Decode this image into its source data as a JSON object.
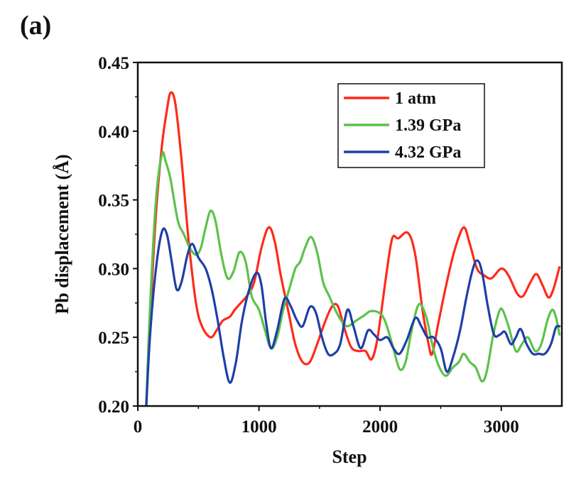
{
  "panel_label": "(a)",
  "chart_data": {
    "type": "line",
    "title": "",
    "xlabel": "Step",
    "ylabel": "Pb displacement (Å)",
    "xlim": [
      0,
      3500
    ],
    "ylim": [
      0.2,
      0.45
    ],
    "x_ticks": [
      0,
      1000,
      2000,
      3000
    ],
    "x_tick_labels": [
      "0",
      "1000",
      "2000",
      "3000"
    ],
    "y_ticks": [
      0.2,
      0.25,
      0.3,
      0.35,
      0.4,
      0.45
    ],
    "y_tick_labels": [
      "0.20",
      "0.25",
      "0.30",
      "0.35",
      "0.40",
      "0.45"
    ],
    "grid": false,
    "legend_position": "top-right",
    "series": [
      {
        "name": "1 atm",
        "color": "#ff2a1a",
        "points": [
          [
            70,
            0.2
          ],
          [
            100,
            0.26
          ],
          [
            150,
            0.34
          ],
          [
            200,
            0.39
          ],
          [
            240,
            0.415
          ],
          [
            270,
            0.428
          ],
          [
            310,
            0.42
          ],
          [
            360,
            0.38
          ],
          [
            420,
            0.32
          ],
          [
            480,
            0.275
          ],
          [
            530,
            0.258
          ],
          [
            600,
            0.25
          ],
          [
            650,
            0.255
          ],
          [
            700,
            0.262
          ],
          [
            760,
            0.265
          ],
          [
            800,
            0.27
          ],
          [
            850,
            0.275
          ],
          [
            900,
            0.28
          ],
          [
            960,
            0.29
          ],
          [
            1020,
            0.315
          ],
          [
            1080,
            0.33
          ],
          [
            1130,
            0.32
          ],
          [
            1180,
            0.295
          ],
          [
            1240,
            0.27
          ],
          [
            1300,
            0.245
          ],
          [
            1360,
            0.232
          ],
          [
            1420,
            0.232
          ],
          [
            1480,
            0.245
          ],
          [
            1540,
            0.26
          ],
          [
            1600,
            0.272
          ],
          [
            1650,
            0.273
          ],
          [
            1700,
            0.258
          ],
          [
            1760,
            0.243
          ],
          [
            1820,
            0.24
          ],
          [
            1880,
            0.24
          ],
          [
            1930,
            0.234
          ],
          [
            1980,
            0.25
          ],
          [
            2050,
            0.295
          ],
          [
            2100,
            0.322
          ],
          [
            2150,
            0.322
          ],
          [
            2230,
            0.326
          ],
          [
            2290,
            0.31
          ],
          [
            2350,
            0.27
          ],
          [
            2400,
            0.245
          ],
          [
            2430,
            0.238
          ],
          [
            2480,
            0.26
          ],
          [
            2550,
            0.29
          ],
          [
            2620,
            0.315
          ],
          [
            2690,
            0.33
          ],
          [
            2740,
            0.318
          ],
          [
            2800,
            0.3
          ],
          [
            2860,
            0.295
          ],
          [
            2920,
            0.293
          ],
          [
            3000,
            0.3
          ],
          [
            3060,
            0.295
          ],
          [
            3130,
            0.282
          ],
          [
            3180,
            0.28
          ],
          [
            3240,
            0.29
          ],
          [
            3290,
            0.296
          ],
          [
            3340,
            0.288
          ],
          [
            3390,
            0.279
          ],
          [
            3430,
            0.285
          ],
          [
            3480,
            0.301
          ]
        ]
      },
      {
        "name": "1.39 GPa",
        "color": "#5cc24a",
        "points": [
          [
            70,
            0.2
          ],
          [
            100,
            0.27
          ],
          [
            150,
            0.35
          ],
          [
            200,
            0.383
          ],
          [
            230,
            0.378
          ],
          [
            270,
            0.365
          ],
          [
            330,
            0.335
          ],
          [
            380,
            0.325
          ],
          [
            430,
            0.315
          ],
          [
            480,
            0.31
          ],
          [
            520,
            0.315
          ],
          [
            560,
            0.33
          ],
          [
            600,
            0.342
          ],
          [
            640,
            0.335
          ],
          [
            690,
            0.31
          ],
          [
            740,
            0.293
          ],
          [
            790,
            0.298
          ],
          [
            840,
            0.312
          ],
          [
            890,
            0.305
          ],
          [
            940,
            0.28
          ],
          [
            1000,
            0.27
          ],
          [
            1050,
            0.255
          ],
          [
            1100,
            0.242
          ],
          [
            1150,
            0.25
          ],
          [
            1200,
            0.27
          ],
          [
            1250,
            0.285
          ],
          [
            1300,
            0.3
          ],
          [
            1340,
            0.305
          ],
          [
            1380,
            0.315
          ],
          [
            1430,
            0.323
          ],
          [
            1480,
            0.312
          ],
          [
            1530,
            0.29
          ],
          [
            1580,
            0.28
          ],
          [
            1630,
            0.27
          ],
          [
            1680,
            0.262
          ],
          [
            1730,
            0.258
          ],
          [
            1800,
            0.262
          ],
          [
            1870,
            0.266
          ],
          [
            1920,
            0.269
          ],
          [
            1990,
            0.268
          ],
          [
            2040,
            0.262
          ],
          [
            2100,
            0.245
          ],
          [
            2160,
            0.227
          ],
          [
            2210,
            0.232
          ],
          [
            2260,
            0.255
          ],
          [
            2320,
            0.274
          ],
          [
            2380,
            0.265
          ],
          [
            2430,
            0.245
          ],
          [
            2480,
            0.23
          ],
          [
            2540,
            0.222
          ],
          [
            2600,
            0.228
          ],
          [
            2650,
            0.232
          ],
          [
            2690,
            0.238
          ],
          [
            2740,
            0.232
          ],
          [
            2790,
            0.228
          ],
          [
            2840,
            0.218
          ],
          [
            2880,
            0.225
          ],
          [
            2930,
            0.25
          ],
          [
            2980,
            0.268
          ],
          [
            3010,
            0.27
          ],
          [
            3060,
            0.258
          ],
          [
            3120,
            0.24
          ],
          [
            3170,
            0.245
          ],
          [
            3220,
            0.25
          ],
          [
            3280,
            0.24
          ],
          [
            3330,
            0.245
          ],
          [
            3380,
            0.262
          ],
          [
            3420,
            0.27
          ],
          [
            3450,
            0.265
          ],
          [
            3480,
            0.252
          ]
        ]
      },
      {
        "name": "4.32 GPa",
        "color": "#1f3fa8",
        "points": [
          [
            70,
            0.2
          ],
          [
            100,
            0.25
          ],
          [
            150,
            0.3
          ],
          [
            200,
            0.327
          ],
          [
            240,
            0.325
          ],
          [
            280,
            0.305
          ],
          [
            320,
            0.285
          ],
          [
            360,
            0.29
          ],
          [
            410,
            0.31
          ],
          [
            450,
            0.318
          ],
          [
            500,
            0.308
          ],
          [
            560,
            0.3
          ],
          [
            610,
            0.285
          ],
          [
            660,
            0.262
          ],
          [
            710,
            0.235
          ],
          [
            760,
            0.217
          ],
          [
            810,
            0.232
          ],
          [
            860,
            0.262
          ],
          [
            920,
            0.285
          ],
          [
            980,
            0.297
          ],
          [
            1020,
            0.288
          ],
          [
            1060,
            0.26
          ],
          [
            1100,
            0.242
          ],
          [
            1150,
            0.255
          ],
          [
            1210,
            0.278
          ],
          [
            1260,
            0.273
          ],
          [
            1310,
            0.263
          ],
          [
            1360,
            0.258
          ],
          [
            1420,
            0.272
          ],
          [
            1470,
            0.268
          ],
          [
            1520,
            0.25
          ],
          [
            1570,
            0.238
          ],
          [
            1620,
            0.238
          ],
          [
            1670,
            0.245
          ],
          [
            1730,
            0.27
          ],
          [
            1780,
            0.258
          ],
          [
            1840,
            0.242
          ],
          [
            1900,
            0.255
          ],
          [
            1950,
            0.252
          ],
          [
            2000,
            0.248
          ],
          [
            2060,
            0.25
          ],
          [
            2110,
            0.242
          ],
          [
            2160,
            0.238
          ],
          [
            2220,
            0.248
          ],
          [
            2290,
            0.264
          ],
          [
            2340,
            0.258
          ],
          [
            2390,
            0.25
          ],
          [
            2440,
            0.25
          ],
          [
            2500,
            0.242
          ],
          [
            2550,
            0.225
          ],
          [
            2600,
            0.235
          ],
          [
            2660,
            0.255
          ],
          [
            2710,
            0.278
          ],
          [
            2760,
            0.298
          ],
          [
            2800,
            0.306
          ],
          [
            2840,
            0.298
          ],
          [
            2890,
            0.272
          ],
          [
            2940,
            0.252
          ],
          [
            2990,
            0.252
          ],
          [
            3030,
            0.254
          ],
          [
            3080,
            0.245
          ],
          [
            3120,
            0.25
          ],
          [
            3160,
            0.256
          ],
          [
            3210,
            0.245
          ],
          [
            3260,
            0.238
          ],
          [
            3310,
            0.238
          ],
          [
            3360,
            0.238
          ],
          [
            3410,
            0.245
          ],
          [
            3450,
            0.257
          ],
          [
            3480,
            0.258
          ]
        ]
      }
    ]
  }
}
